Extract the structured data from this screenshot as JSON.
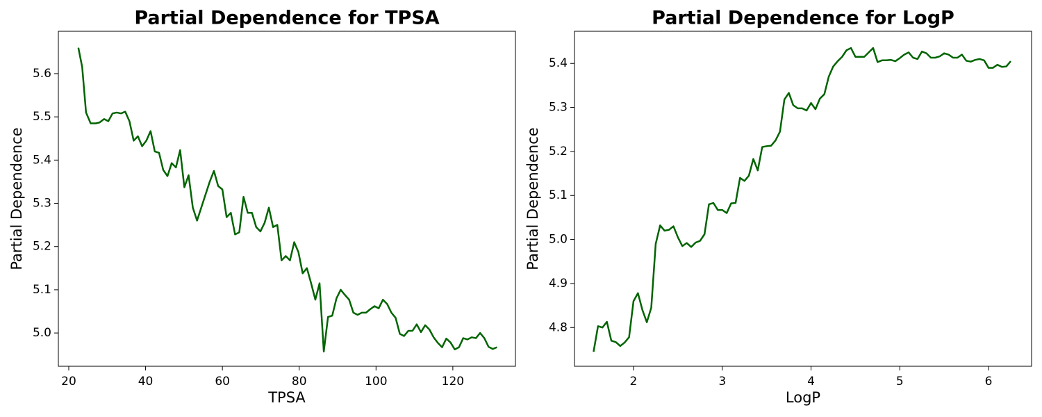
{
  "chart_data": [
    {
      "type": "line",
      "title": "Partial Dependence for TPSA",
      "xlabel": "TPSA",
      "ylabel": "Partial Dependence",
      "xlim": [
        17.29,
        136.3
      ],
      "ylim": [
        4.923,
        5.698
      ],
      "xticks": [
        20,
        40,
        60,
        80,
        100,
        120
      ],
      "yticks": [
        {
          "value": 5,
          "label": "5.0"
        },
        5.1,
        5.2,
        5.3,
        5.4,
        5.5,
        5.6
      ],
      "grid": false,
      "series": [
        {
          "name": "TPSA",
          "color": "#006400",
          "x": [
            22.5,
            23.5,
            24.5,
            25.7,
            27,
            28,
            29.2,
            30.3,
            31.4,
            32.5,
            33.6,
            34.7,
            35.8,
            36.9,
            38,
            39.1,
            40.2,
            41.3,
            42.4,
            43.5,
            44.6,
            45.7,
            46.8,
            47.9,
            49,
            50.1,
            51.2,
            52.3,
            53.4,
            54.5,
            55.6,
            56.7,
            57.8,
            58.9,
            60,
            61.1,
            62.2,
            63.3,
            64.4,
            65.5,
            66.6,
            67.7,
            68.8,
            69.9,
            71,
            72.1,
            73.2,
            74.3,
            75.4,
            76.5,
            77.6,
            78.7,
            79.8,
            80.9,
            82,
            83.1,
            84.2,
            85.3,
            86.4,
            87.5,
            88.6,
            89.7,
            90.8,
            91.9,
            93,
            94.1,
            95.2,
            96.3,
            97.4,
            98.5,
            99.6,
            100.7,
            101.8,
            102.9,
            104,
            105.1,
            106.2,
            107.3,
            108.4,
            109.5,
            110.6,
            111.7,
            112.8,
            113.9,
            115,
            116.1,
            117.2,
            118.3,
            119.4,
            120.5,
            121.6,
            122.7,
            123.8,
            124.9,
            126,
            127.1,
            128.2,
            129.3,
            130.4,
            131.5
          ],
          "values": [
            5.66,
            5.615,
            5.51,
            5.485,
            5.485,
            5.487,
            5.495,
            5.49,
            5.508,
            5.51,
            5.508,
            5.512,
            5.49,
            5.445,
            5.455,
            5.432,
            5.445,
            5.467,
            5.42,
            5.417,
            5.377,
            5.363,
            5.393,
            5.383,
            5.423,
            5.337,
            5.365,
            5.29,
            5.26,
            5.29,
            5.32,
            5.35,
            5.375,
            5.34,
            5.332,
            5.268,
            5.278,
            5.228,
            5.233,
            5.315,
            5.278,
            5.278,
            5.245,
            5.235,
            5.255,
            5.29,
            5.245,
            5.25,
            5.168,
            5.178,
            5.168,
            5.21,
            5.187,
            5.138,
            5.15,
            5.115,
            5.077,
            5.115,
            4.957,
            5.037,
            5.04,
            5.08,
            5.1,
            5.088,
            5.077,
            5.047,
            5.042,
            5.047,
            5.047,
            5.055,
            5.062,
            5.057,
            5.077,
            5.067,
            5.047,
            5.035,
            4.998,
            4.993,
            5.005,
            5.005,
            5.02,
            5.002,
            5.018,
            5.008,
            4.99,
            4.977,
            4.967,
            4.987,
            4.978,
            4.962,
            4.967,
            4.988,
            4.985,
            4.99,
            4.988,
            5.0,
            4.988,
            4.968,
            4.963,
            4.967
          ]
        }
      ]
    },
    {
      "type": "line",
      "title": "Partial Dependence for LogP",
      "xlabel": "LogP",
      "ylabel": "Partial Dependence",
      "xlim": [
        1.335,
        6.485
      ],
      "ylim": [
        4.712,
        5.473
      ],
      "xticks": [
        2,
        3,
        4,
        5,
        6
      ],
      "yticks": [
        4.8,
        4.9,
        {
          "value": 5,
          "label": "5.0"
        },
        5.1,
        5.2,
        5.3,
        5.4
      ],
      "grid": false,
      "series": [
        {
          "name": "LogP",
          "color": "#006400",
          "x": [
            1.55,
            1.6,
            1.65,
            1.7,
            1.75,
            1.8,
            1.85,
            1.9,
            1.95,
            2.0,
            2.05,
            2.1,
            2.15,
            2.2,
            2.25,
            2.3,
            2.35,
            2.4,
            2.45,
            2.5,
            2.55,
            2.6,
            2.65,
            2.7,
            2.75,
            2.8,
            2.85,
            2.9,
            2.95,
            3.0,
            3.05,
            3.1,
            3.15,
            3.2,
            3.25,
            3.3,
            3.35,
            3.4,
            3.45,
            3.5,
            3.55,
            3.6,
            3.65,
            3.7,
            3.75,
            3.8,
            3.85,
            3.9,
            3.95,
            4.0,
            4.05,
            4.1,
            4.15,
            4.2,
            4.25,
            4.3,
            4.35,
            4.4,
            4.45,
            4.5,
            4.55,
            4.6,
            4.65,
            4.7,
            4.75,
            4.8,
            4.85,
            4.9,
            4.95,
            5.0,
            5.05,
            5.1,
            5.15,
            5.2,
            5.25,
            5.3,
            5.35,
            5.4,
            5.45,
            5.5,
            5.55,
            5.6,
            5.65,
            5.7,
            5.75,
            5.8,
            5.85,
            5.9,
            5.95,
            6.0,
            6.05,
            6.1,
            6.15,
            6.2,
            6.25
          ],
          "values": [
            4.745,
            4.803,
            4.8,
            4.813,
            4.77,
            4.767,
            4.758,
            4.766,
            4.778,
            4.86,
            4.878,
            4.84,
            4.812,
            4.845,
            4.99,
            5.032,
            5.02,
            5.022,
            5.03,
            5.005,
            4.985,
            4.992,
            4.983,
            4.993,
            4.997,
            5.012,
            5.08,
            5.083,
            5.067,
            5.067,
            5.06,
            5.082,
            5.083,
            5.14,
            5.133,
            5.145,
            5.183,
            5.157,
            5.21,
            5.212,
            5.213,
            5.225,
            5.245,
            5.318,
            5.333,
            5.305,
            5.298,
            5.298,
            5.293,
            5.31,
            5.296,
            5.32,
            5.33,
            5.37,
            5.393,
            5.405,
            5.415,
            5.43,
            5.435,
            5.415,
            5.415,
            5.415,
            5.425,
            5.435,
            5.403,
            5.407,
            5.407,
            5.408,
            5.405,
            5.412,
            5.42,
            5.425,
            5.413,
            5.41,
            5.427,
            5.423,
            5.413,
            5.413,
            5.416,
            5.423,
            5.42,
            5.413,
            5.413,
            5.42,
            5.406,
            5.404,
            5.408,
            5.41,
            5.407,
            5.39,
            5.39,
            5.397,
            5.392,
            5.393,
            5.405
          ]
        }
      ]
    }
  ]
}
